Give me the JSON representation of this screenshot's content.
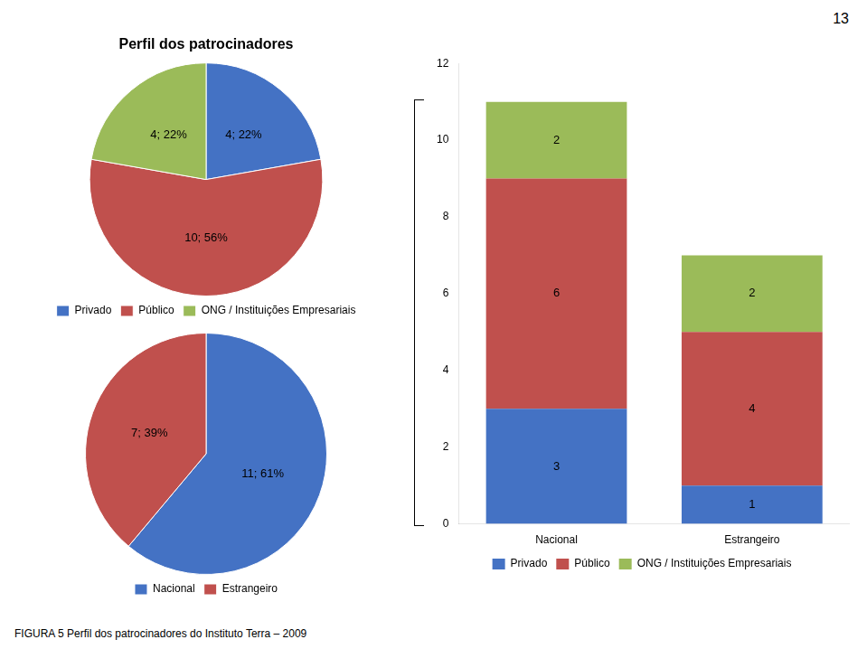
{
  "chart_data": [
    {
      "type": "pie",
      "title": "Perfil dos patrocinadores",
      "categories": [
        "Privado",
        "Público",
        "ONG / Instituições Empresariais"
      ],
      "values": [
        4,
        10,
        4
      ],
      "value_labels": [
        "4; 22%",
        "10; 56%",
        "4; 22%"
      ],
      "colors": [
        "#4472C4",
        "#C0504D",
        "#9BBB59"
      ],
      "data_labels": true,
      "legend": "bottom",
      "annotations": [
        "13",
        "FIGURA 5 Perfil dos patrocinadores do Instituto Terra – 2009"
      ]
    },
    {
      "type": "pie",
      "categories": [
        "Nacional",
        "Estrangeiro"
      ],
      "values": [
        11,
        7
      ],
      "value_labels": [
        "11; 61%",
        "7; 39%"
      ],
      "colors": [
        "#4472C4",
        "#C0504D"
      ],
      "data_labels": true,
      "legend": "bottom"
    },
    {
      "type": "bar",
      "stacked": true,
      "categories": [
        "Nacional",
        "Estrangeiro"
      ],
      "series": [
        {
          "name": "Privado",
          "color": "#4472C4",
          "values": [
            3,
            1
          ]
        },
        {
          "name": "Público",
          "color": "#C0504D",
          "values": [
            6,
            4
          ]
        },
        {
          "name": "ONG / Instituições Empresariais",
          "color": "#9BBB59",
          "values": [
            2,
            2
          ]
        }
      ],
      "ylim": [
        0,
        12
      ],
      "yticks": [
        0,
        2,
        4,
        6,
        8,
        10,
        12
      ],
      "grid": false,
      "data_labels": true,
      "legend": "bottom"
    }
  ]
}
